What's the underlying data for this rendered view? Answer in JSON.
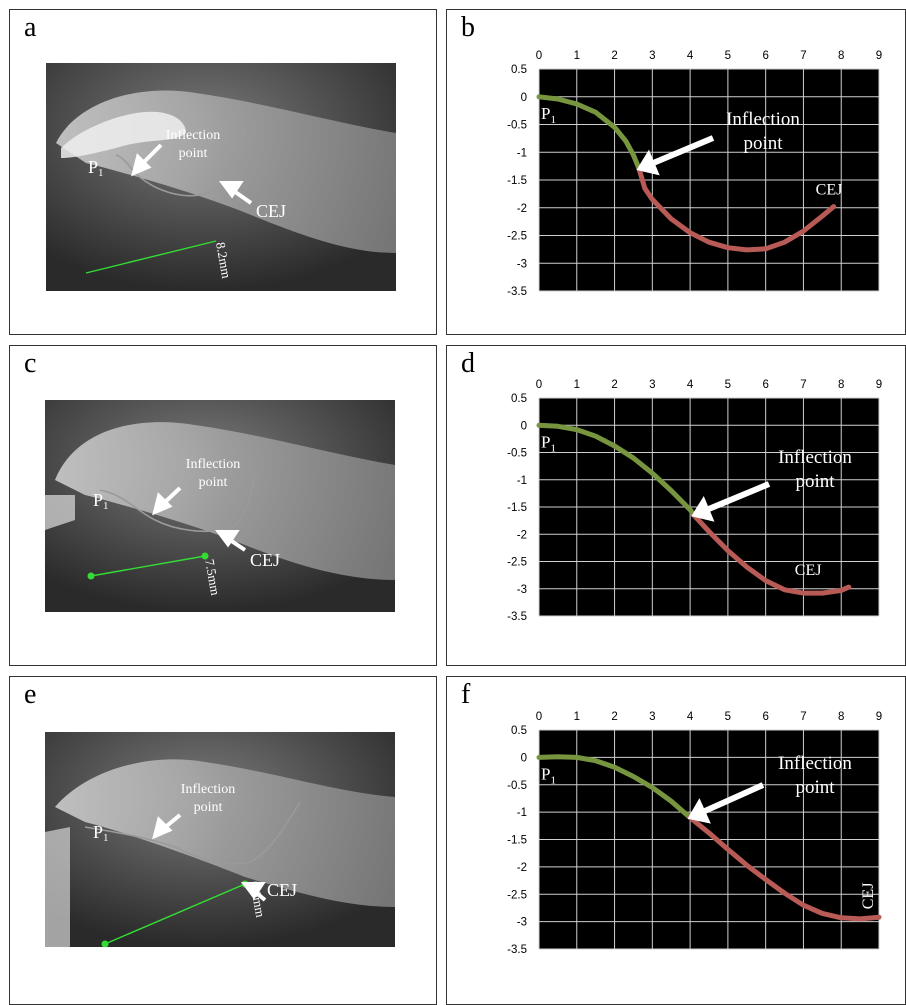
{
  "panels": {
    "a": {
      "letter": "a",
      "measurement": "8.2mm",
      "inflection_label": [
        "Inflection",
        "point"
      ],
      "p1_label": "P",
      "p1_sub": "1",
      "cej_label": "CEJ"
    },
    "c": {
      "letter": "c",
      "measurement": "7.5mm",
      "inflection_label": [
        "Inflection",
        "point"
      ],
      "p1_label": "P",
      "p1_sub": "1",
      "cej_label": "CEJ"
    },
    "e": {
      "letter": "e",
      "measurement": "0.0mm",
      "inflection_label": [
        "Inflection",
        "point"
      ],
      "p1_label": "P",
      "p1_sub": "1",
      "cej_label": "CEJ"
    },
    "b": {
      "letter": "b"
    },
    "d": {
      "letter": "d"
    },
    "f": {
      "letter": "f"
    }
  },
  "colors": {
    "plot_bg": "#000000",
    "grid": "#cfcfcf",
    "upper_segment": "#77953f",
    "lower_segment": "#b85a55",
    "ct_measure_line": "#33dd33",
    "annotation": "#ffffff"
  },
  "chart_data": [
    {
      "panel": "b",
      "type": "line",
      "x_ticks": [
        "0",
        "1",
        "2",
        "3",
        "4",
        "5",
        "6",
        "7",
        "8",
        "9"
      ],
      "y_ticks": [
        "0.5",
        "0",
        "-0.5",
        "-1",
        "-1.5",
        "-2",
        "-2.5",
        "-3",
        "-3.5"
      ],
      "xlim": [
        0,
        9
      ],
      "ylim": [
        -3.5,
        0.5
      ],
      "series": [
        {
          "segment": "upper",
          "color": "#77953f",
          "x": [
            0,
            0.5,
            1.0,
            1.5,
            2.0,
            2.3,
            2.5,
            2.65
          ],
          "y": [
            0,
            -0.04,
            -0.13,
            -0.28,
            -0.55,
            -0.8,
            -1.05,
            -1.3
          ]
        },
        {
          "segment": "lower",
          "color": "#b85a55",
          "x": [
            2.65,
            2.8,
            3.0,
            3.5,
            4.0,
            4.5,
            5.0,
            5.5,
            6.0,
            6.5,
            7.0,
            7.5,
            7.8
          ],
          "y": [
            -1.3,
            -1.65,
            -1.85,
            -2.2,
            -2.45,
            -2.62,
            -2.72,
            -2.76,
            -2.74,
            -2.62,
            -2.42,
            -2.15,
            -1.98
          ]
        }
      ],
      "annotations": {
        "p1": {
          "label": "P",
          "sub": "1"
        },
        "inflection": {
          "lines": [
            "Inflection",
            "point"
          ]
        },
        "cej": {
          "label": "CEJ"
        }
      }
    },
    {
      "panel": "d",
      "type": "line",
      "x_ticks": [
        "0",
        "1",
        "2",
        "3",
        "4",
        "5",
        "6",
        "7",
        "8",
        "9"
      ],
      "y_ticks": [
        "0.5",
        "0",
        "-0.5",
        "-1",
        "-1.5",
        "-2",
        "-2.5",
        "-3",
        "-3.5"
      ],
      "xlim": [
        0,
        9
      ],
      "ylim": [
        -3.5,
        0.5
      ],
      "series": [
        {
          "segment": "upper",
          "color": "#77953f",
          "x": [
            0,
            0.5,
            1.0,
            1.5,
            2.0,
            2.5,
            3.0,
            3.5,
            4.0,
            4.1
          ],
          "y": [
            0,
            -0.02,
            -0.08,
            -0.2,
            -0.38,
            -0.6,
            -0.88,
            -1.2,
            -1.55,
            -1.65
          ]
        },
        {
          "segment": "lower",
          "color": "#b85a55",
          "x": [
            4.1,
            4.5,
            5.0,
            5.5,
            6.0,
            6.5,
            7.0,
            7.5,
            8.0,
            8.2
          ],
          "y": [
            -1.65,
            -1.95,
            -2.3,
            -2.6,
            -2.85,
            -3.02,
            -3.08,
            -3.08,
            -3.03,
            -2.97
          ]
        }
      ],
      "annotations": {
        "p1": {
          "label": "P",
          "sub": "1"
        },
        "inflection": {
          "lines": [
            "Inflection",
            "point"
          ]
        },
        "cej": {
          "label": "CEJ"
        }
      }
    },
    {
      "panel": "f",
      "type": "line",
      "x_ticks": [
        "0",
        "1",
        "2",
        "3",
        "4",
        "5",
        "6",
        "7",
        "8",
        "9"
      ],
      "y_ticks": [
        "0.5",
        "0",
        "-0.5",
        "-1",
        "-1.5",
        "-2",
        "-2.5",
        "-3",
        "-3.5"
      ],
      "xlim": [
        0,
        9
      ],
      "ylim": [
        -3.5,
        0.5
      ],
      "series": [
        {
          "segment": "upper",
          "color": "#77953f",
          "x": [
            0,
            0.5,
            1.0,
            1.5,
            2.0,
            2.5,
            3.0,
            3.5,
            4.0
          ],
          "y": [
            0,
            0.01,
            0,
            -0.06,
            -0.18,
            -0.35,
            -0.55,
            -0.8,
            -1.1
          ]
        },
        {
          "segment": "lower",
          "color": "#b85a55",
          "x": [
            4.0,
            4.5,
            5.0,
            5.5,
            6.0,
            6.5,
            7.0,
            7.5,
            8.0,
            8.5,
            9.0
          ],
          "y": [
            -1.1,
            -1.38,
            -1.68,
            -1.97,
            -2.23,
            -2.48,
            -2.7,
            -2.85,
            -2.93,
            -2.95,
            -2.92
          ]
        }
      ],
      "annotations": {
        "p1": {
          "label": "P",
          "sub": "1"
        },
        "inflection": {
          "lines": [
            "Inflection",
            "point"
          ]
        },
        "cej": {
          "label": "CEJ"
        }
      }
    }
  ]
}
